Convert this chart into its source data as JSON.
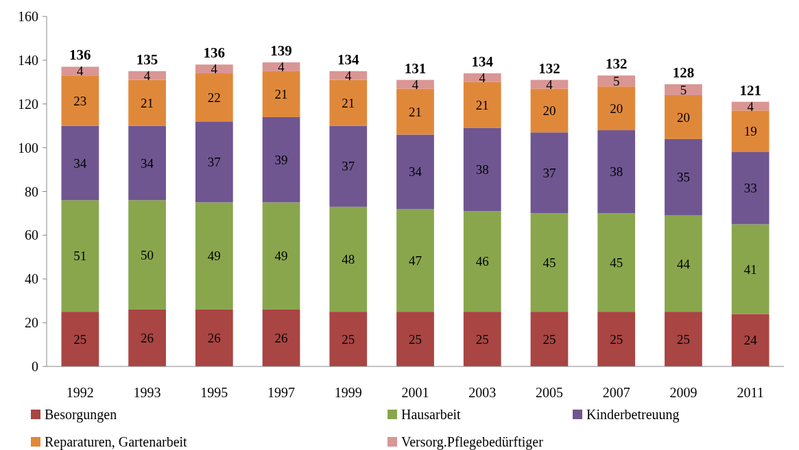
{
  "chart_data": {
    "type": "bar",
    "stacked": true,
    "categories": [
      "1992",
      "1993",
      "1995",
      "1997",
      "1999",
      "2001",
      "2003",
      "2005",
      "2007",
      "2009",
      "2011"
    ],
    "series": [
      {
        "name": "Besorgungen",
        "color": "#a94543",
        "values": [
          25,
          26,
          26,
          26,
          25,
          25,
          25,
          25,
          25,
          25,
          24
        ]
      },
      {
        "name": "Hausarbeit",
        "color": "#89a64d",
        "values": [
          51,
          50,
          49,
          49,
          48,
          47,
          46,
          45,
          45,
          44,
          41
        ]
      },
      {
        "name": "Kinderbetreuung",
        "color": "#6f5690",
        "values": [
          34,
          34,
          37,
          39,
          37,
          34,
          38,
          37,
          38,
          35,
          33
        ]
      },
      {
        "name": "Reparaturen, Gartenarbeit",
        "color": "#e0883a",
        "values": [
          23,
          21,
          22,
          21,
          21,
          21,
          21,
          20,
          20,
          20,
          19
        ]
      },
      {
        "name": "Versorg.Pflegebedürftiger",
        "color": "#d99694",
        "values": [
          4,
          4,
          4,
          4,
          4,
          4,
          4,
          4,
          5,
          5,
          4
        ]
      }
    ],
    "totals": [
      "136",
      "135",
      "136",
      "139",
      "134",
      "131",
      "134",
      "132",
      "132",
      "128",
      "121"
    ],
    "data_labels": true,
    "ylim": [
      0,
      160
    ],
    "yticks": [
      0,
      20,
      40,
      60,
      80,
      100,
      120,
      140,
      160
    ],
    "grid": false,
    "legend": "bottom"
  }
}
